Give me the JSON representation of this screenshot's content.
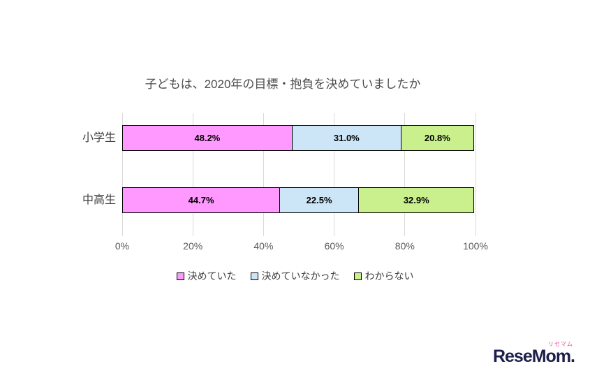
{
  "chart_data": {
    "type": "bar",
    "orientation": "horizontal",
    "stacked": true,
    "title": "子どもは、2020年の目標・抱負を決めていましたか",
    "categories": [
      "小学生",
      "中高生"
    ],
    "series": [
      {
        "name": "決めていた",
        "color": "#ff99ff",
        "values": [
          48.2,
          44.7
        ]
      },
      {
        "name": "決めていなかった",
        "color": "#cce6f7",
        "values": [
          31.0,
          22.5
        ]
      },
      {
        "name": "わからない",
        "color": "#c9f08c",
        "values": [
          20.8,
          32.9
        ]
      }
    ],
    "x_ticks": [
      "0%",
      "20%",
      "40%",
      "60%",
      "80%",
      "100%"
    ],
    "xlim": [
      0,
      100
    ],
    "grid": "vertical",
    "legend_position": "bottom",
    "value_label_format": "percent-one-decimal"
  },
  "logo": {
    "ruby": "リセマム",
    "main": "ReseMom."
  }
}
